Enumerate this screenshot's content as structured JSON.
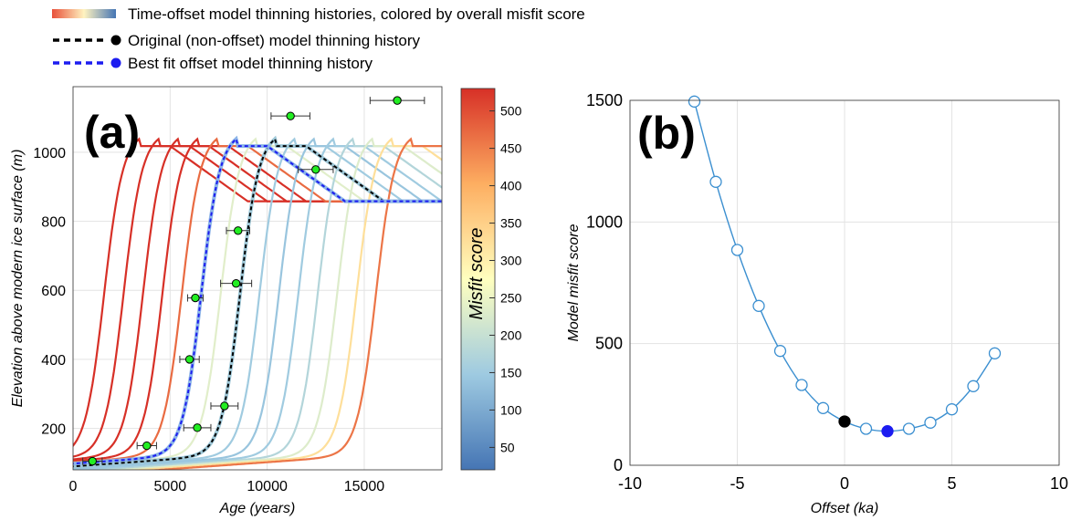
{
  "legend": {
    "items": [
      {
        "label": "Time-offset model thinning histories, colored by overall misfit score",
        "kind": "gradient"
      },
      {
        "label": "Original (non-offset) model thinning history",
        "kind": "original",
        "color": "#000000"
      },
      {
        "label": "Best fit offset model thinning history",
        "kind": "best",
        "color": "#1c1cf0"
      }
    ]
  },
  "colors": {
    "low": "#4575b4",
    "mid": "#ffffbf",
    "high": "#d73027",
    "sample_fill": "#22ee22",
    "best": "#1c1cf0",
    "curve_b": "#3b8fd0"
  },
  "chart_data": [
    {
      "type": "line",
      "panel_label": "(a)",
      "title": "",
      "xlabel": "Age (years)",
      "ylabel": "Elevation above modern ice surface (m)",
      "xlim": [
        0,
        19000
      ],
      "ylim": [
        80,
        1190
      ],
      "xticks": [
        0,
        5000,
        10000,
        15000
      ],
      "yticks": [
        200,
        400,
        600,
        800,
        1000
      ],
      "grid": true,
      "colorbar": {
        "label": "Misfit score",
        "min": 20,
        "max": 530,
        "ticks": [
          50,
          100,
          150,
          200,
          250,
          300,
          350,
          400,
          450,
          500
        ]
      },
      "model_curves": {
        "description_units": "each curve is the original thinning history shifted in age by an offset (ka)",
        "offsets_ka": [
          -7,
          -6,
          -5,
          -4,
          -3,
          -2,
          -1,
          1,
          2,
          3,
          4,
          5,
          6,
          7
        ],
        "misfit_scores": [
          1495,
          1165,
          885,
          655,
          470,
          330,
          235,
          150,
          140,
          150,
          175,
          230,
          325,
          460
        ]
      },
      "original_offset_ka": 0,
      "best_offset_ka": 2,
      "samples": [
        {
          "age": 1000,
          "age_err": 500,
          "elevation": 105
        },
        {
          "age": 3800,
          "age_err": 500,
          "elevation": 150
        },
        {
          "age": 6400,
          "age_err": 700,
          "elevation": 202
        },
        {
          "age": 7800,
          "age_err": 700,
          "elevation": 265
        },
        {
          "age": 6000,
          "age_err": 500,
          "elevation": 400
        },
        {
          "age": 6300,
          "age_err": 400,
          "elevation": 578
        },
        {
          "age": 8400,
          "age_err": 800,
          "elevation": 620
        },
        {
          "age": 8500,
          "age_err": 600,
          "elevation": 773
        },
        {
          "age": 12500,
          "age_err": 900,
          "elevation": 950
        },
        {
          "age": 11200,
          "age_err": 1000,
          "elevation": 1105
        },
        {
          "age": 16700,
          "age_err": 1400,
          "elevation": 1150
        }
      ]
    },
    {
      "type": "line",
      "panel_label": "(b)",
      "title": "",
      "xlabel": "Offset (ka)",
      "ylabel": "Model misfit score",
      "xlim": [
        -10,
        10
      ],
      "ylim": [
        0,
        1500
      ],
      "xticks": [
        -10,
        -5,
        0,
        5,
        10
      ],
      "yticks": [
        0,
        500,
        1000,
        1500
      ],
      "grid": true,
      "x": [
        -7,
        -6,
        -5,
        -4,
        -3,
        -2,
        -1,
        0,
        1,
        2,
        3,
        4,
        5,
        6,
        7
      ],
      "y": [
        1495,
        1165,
        885,
        655,
        470,
        330,
        235,
        180,
        150,
        140,
        150,
        175,
        230,
        325,
        460
      ],
      "original_point": {
        "x": 0,
        "y": 180
      },
      "best_point": {
        "x": 2,
        "y": 140
      }
    }
  ]
}
